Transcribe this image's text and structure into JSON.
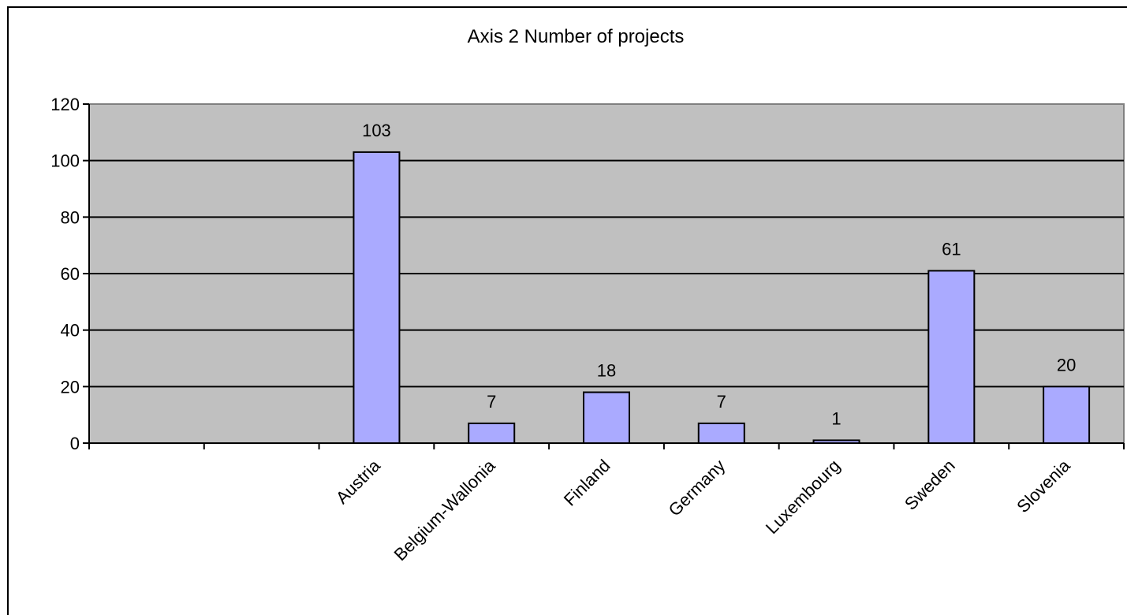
{
  "chart_data": {
    "type": "bar",
    "title": "Axis 2 Number of projects",
    "xlabel": "",
    "ylabel": "",
    "categories": [
      "",
      "",
      "Austria",
      "Belgium-Wallonia",
      "Finland",
      "Germany",
      "Luxembourg",
      "Sweden",
      "Slovenia"
    ],
    "values": [
      null,
      null,
      103,
      7,
      18,
      7,
      1,
      61,
      20
    ],
    "data_labels": [
      "",
      "",
      "103",
      "7",
      "18",
      "7",
      "1",
      "61",
      "20"
    ],
    "ylim": [
      0,
      120
    ],
    "yticks": [
      0,
      20,
      40,
      60,
      80,
      100,
      120
    ],
    "ytick_labels": [
      "0",
      "20",
      "40",
      "60",
      "80",
      "100",
      "120"
    ],
    "grid": true,
    "legend": "none",
    "colors": {
      "bar_fill": "#aaaaff",
      "bar_stroke": "#000000",
      "plot_background": "#c0c0c0",
      "grid": "#000000",
      "page_background": "#ffffff"
    }
  }
}
